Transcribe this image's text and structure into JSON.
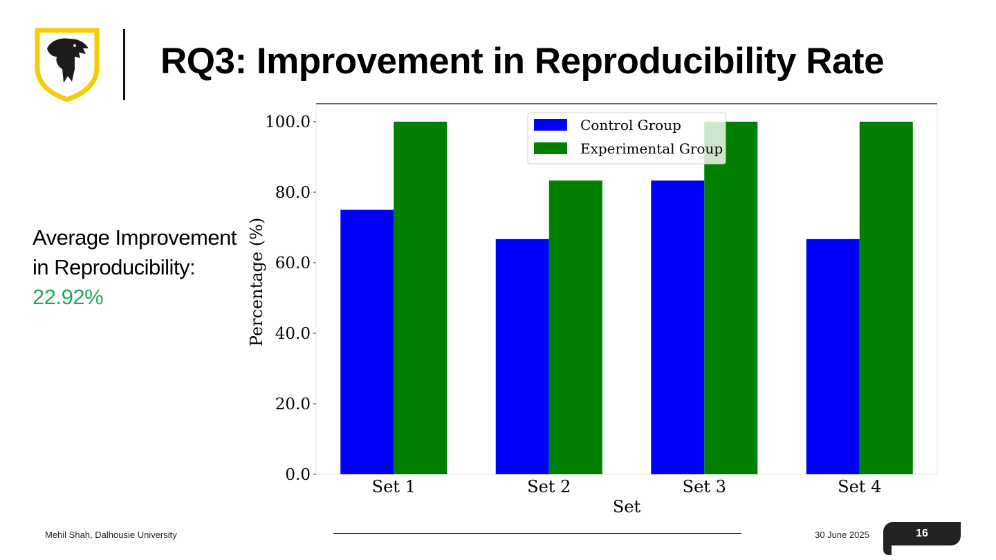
{
  "slide": {
    "title": "RQ3: Improvement in Reproducibility Rate",
    "logo_icon": "dalhousie-shield-logo-icon",
    "colors": {
      "logo_gold": "#f5cc0a",
      "highlight": "#1aab52"
    }
  },
  "summary": {
    "line1": "Average Improvement",
    "line2": "in Reproducibility:",
    "value": "22.92%"
  },
  "footer": {
    "author": "Mehil Shah, Dalhousie University",
    "date": "30 June 2025",
    "page_number": "16"
  },
  "chart_data": {
    "type": "bar",
    "categories": [
      "Set 1",
      "Set 2",
      "Set 3",
      "Set 4"
    ],
    "series": [
      {
        "name": "Control Group",
        "color": "#0000ff",
        "values": [
          75.0,
          66.7,
          83.3,
          66.7
        ]
      },
      {
        "name": "Experimental Group",
        "color": "#008000",
        "values": [
          100.0,
          83.3,
          100.0,
          100.0
        ]
      }
    ],
    "xlabel": "Set",
    "ylabel": "Percentage (%)",
    "ylim": [
      0,
      100
    ],
    "yticks": [
      "0.0",
      "20.0",
      "40.0",
      "60.0",
      "80.0",
      "100.0"
    ],
    "legend_position": "top-center",
    "grid": false
  }
}
